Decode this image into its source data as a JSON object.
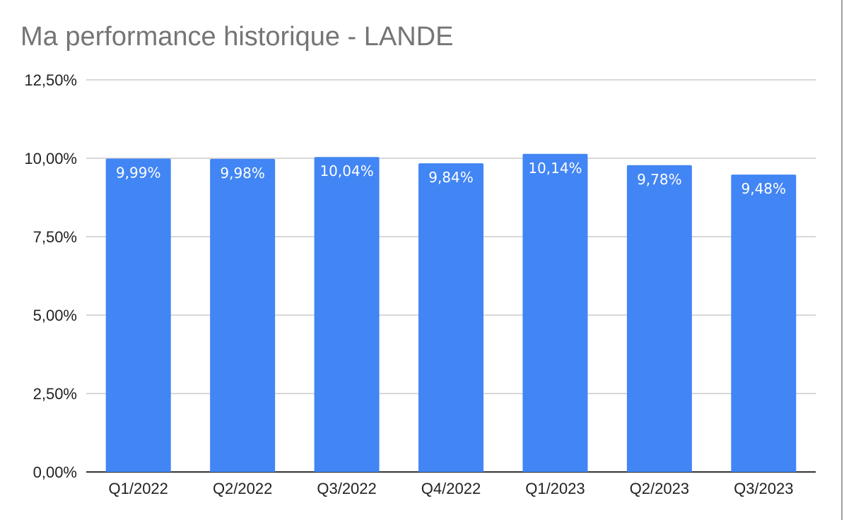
{
  "chart_data": {
    "type": "bar",
    "title": "Ma performance historique - LANDE",
    "categories": [
      "Q1/2022",
      "Q2/2022",
      "Q3/2022",
      "Q4/2022",
      "Q1/2023",
      "Q2/2023",
      "Q3/2023"
    ],
    "values": [
      9.99,
      9.98,
      10.04,
      9.84,
      10.14,
      9.78,
      9.48
    ],
    "data_labels": [
      "9,99%",
      "9,98%",
      "10,04%",
      "9,84%",
      "10,14%",
      "9,78%",
      "9,48%"
    ],
    "yticks": [
      0,
      2.5,
      5,
      7.5,
      10,
      12.5
    ],
    "ytick_labels": [
      "0,00%",
      "2,50%",
      "5,00%",
      "7,50%",
      "10,00%",
      "12,50%"
    ],
    "ylim": [
      0,
      12.5
    ],
    "xlabel": "",
    "ylabel": "",
    "grid": true,
    "legend": "none",
    "colors": {
      "bar": "#4285f4",
      "title": "#757575",
      "grid": "#cccccc",
      "axis": "#333333"
    }
  }
}
